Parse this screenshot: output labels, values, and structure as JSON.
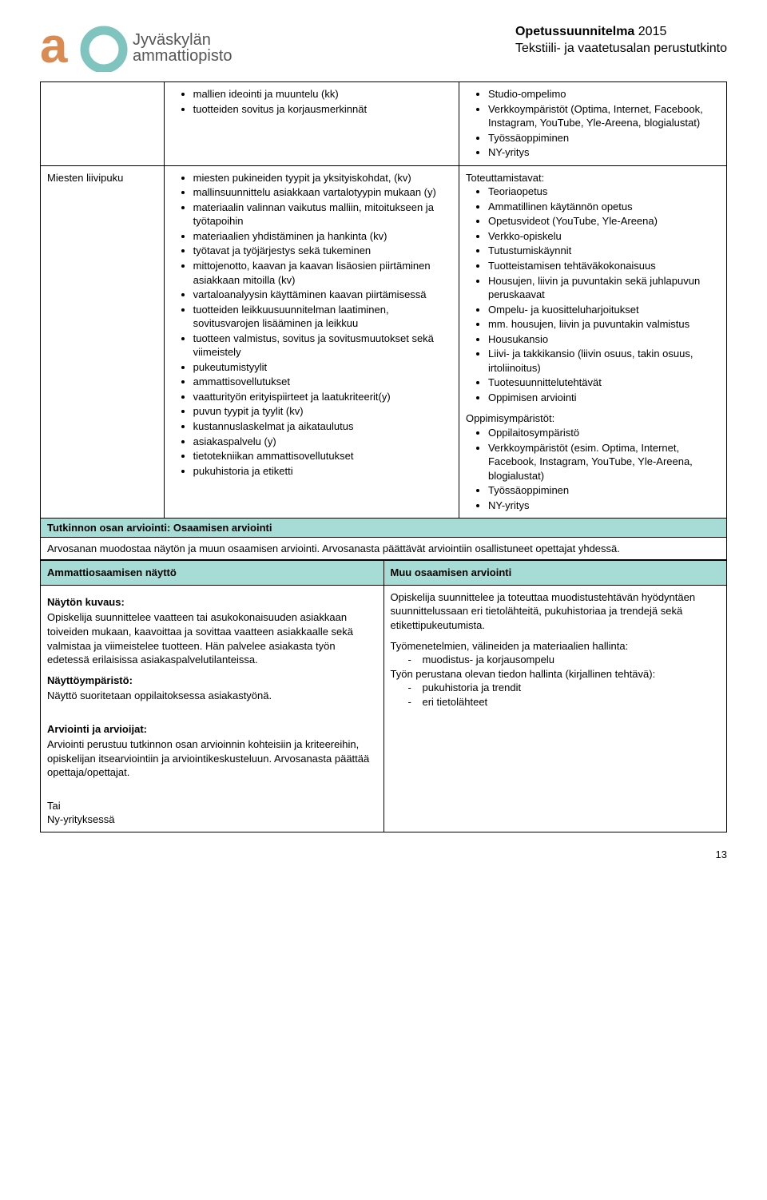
{
  "header": {
    "logo_line1": "Jyväskylän",
    "logo_line2": "ammattiopisto",
    "title_bold": "Opetussuunnitelma",
    "title_year": "2015",
    "subtitle": "Tekstiili- ja vaatetusalan perustutkinto"
  },
  "row1": {
    "left": [
      "mallien ideointi ja muuntelu (kk)",
      "tuotteiden sovitus ja korjausmerkinnät"
    ],
    "right": [
      "Studio-ompelimo",
      "Verkkoympäristöt (Optima, Internet, Facebook, Instagram, YouTube, Yle-Areena, blogialustat)",
      "Työssäoppiminen",
      "NY-yritys"
    ]
  },
  "row2": {
    "label": "Miesten liivipuku",
    "mid": [
      "miesten pukineiden tyypit ja yksityiskohdat, (kv)",
      "mallinsuunnittelu asiakkaan vartalotyypin mukaan (y)",
      "materiaalin valinnan vaikutus malliin, mitoitukseen ja työtapoihin",
      "materiaalien yhdistäminen ja hankinta (kv)",
      "työtavat ja työjärjestys sekä tukeminen",
      "mittojenotto, kaavan ja kaavan lisäosien piirtäminen asiakkaan mitoilla (kv)",
      "vartaloanalyysin käyttäminen kaavan piirtämisessä",
      "tuotteiden leikkuusuunnitelman laatiminen, sovitusvarojen lisääminen ja leikkuu",
      "tuotteen valmistus, sovitus ja sovitusmuutokset sekä viimeistely",
      "pukeutumistyylit",
      "ammattisovellutukset",
      "vaatturityön erityispiirteet ja laatukriteerit(y)",
      "puvun tyypit ja tyylit (kv)",
      "kustannuslaskelmat ja aikataulutus",
      "asiakaspalvelu (y)",
      "tietotekniikan ammattisovellutukset",
      "pukuhistoria ja etiketti"
    ],
    "right_h1": "Toteuttamistavat:",
    "right_list1": [
      "Teoriaopetus",
      "Ammatillinen käytännön opetus",
      "Opetusvideot (YouTube, Yle-Areena)",
      "Verkko-opiskelu",
      "Tutustumiskäynnit",
      "Tuotteistamisen tehtäväkokonaisuus",
      "Housujen, liivin ja puvuntakin sekä juhlapuvun peruskaavat",
      "Ompelu- ja kuositteluharjoitukset",
      "mm. housujen, liivin ja puvuntakin valmistus",
      "Housukansio",
      "Liivi- ja takkikansio (liivin osuus, takin osuus, irtoliinoitus)",
      "Tuotesuunnittelutehtävät",
      "Oppimisen arviointi"
    ],
    "right_h2": "Oppimisympäristöt:",
    "right_list2": [
      "Oppilaitosympäristö",
      "Verkkoympäristöt (esim. Optima, Internet, Facebook, Instagram, YouTube, Yle-Areena, blogialustat)",
      "Työssäoppiminen",
      "NY-yritys"
    ]
  },
  "assessment": {
    "title": "Tutkinnon osan arviointi: Osaamisen arviointi",
    "intro": "Arvosanan muodostaa näytön ja muun osaamisen arviointi. Arvosanasta päättävät arviointiin osallistuneet opettajat yhdessä.",
    "col1_header": "Ammattiosaamisen näyttö",
    "col2_header": "Muu osaamisen arviointi",
    "col1": {
      "h1": "Näytön kuvaus:",
      "p1": "Opiskelija suunnittelee vaatteen tai asukokonaisuuden asiakkaan toiveiden mukaan, kaavoittaa ja sovittaa vaatteen asiakkaalle sekä valmistaa ja viimeistelee tuotteen. Hän palvelee asiakasta työn edetessä erilaisissa asiakaspalvelutilanteissa.",
      "h2": "Näyttöympäristö:",
      "p2": "Näyttö suoritetaan oppilaitoksessa asiakastyönä.",
      "h3": "Arviointi ja arvioijat:",
      "p3": "Arviointi perustuu tutkinnon osan arvioinnin kohteisiin ja kriteereihin, opiskelijan itsearviointiin ja arviointikeskusteluun. Arvosanasta päättää opettaja/opettajat.",
      "tail1": "Tai",
      "tail2": "Ny-yrityksessä"
    },
    "col2": {
      "p1": "Opiskelija suunnittelee ja toteuttaa muodistustehtävän hyödyntäen suunnittelussaan eri tietolähteitä, pukuhistoriaa ja trendejä sekä etikettipukeutumista.",
      "line1": "Työmenetelmien, välineiden ja materiaalien hallinta:",
      "dash1": [
        "muodistus- ja korjausompelu"
      ],
      "line2": "Työn perustana olevan tiedon hallinta (kirjallinen tehtävä):",
      "dash2": [
        "pukuhistoria ja trendit",
        "eri tietolähteet"
      ]
    }
  },
  "page_number": "13",
  "colors": {
    "header_bg": "#a6dbd6",
    "logo_orange": "#d98b52",
    "logo_teal": "#7fc4bf"
  }
}
